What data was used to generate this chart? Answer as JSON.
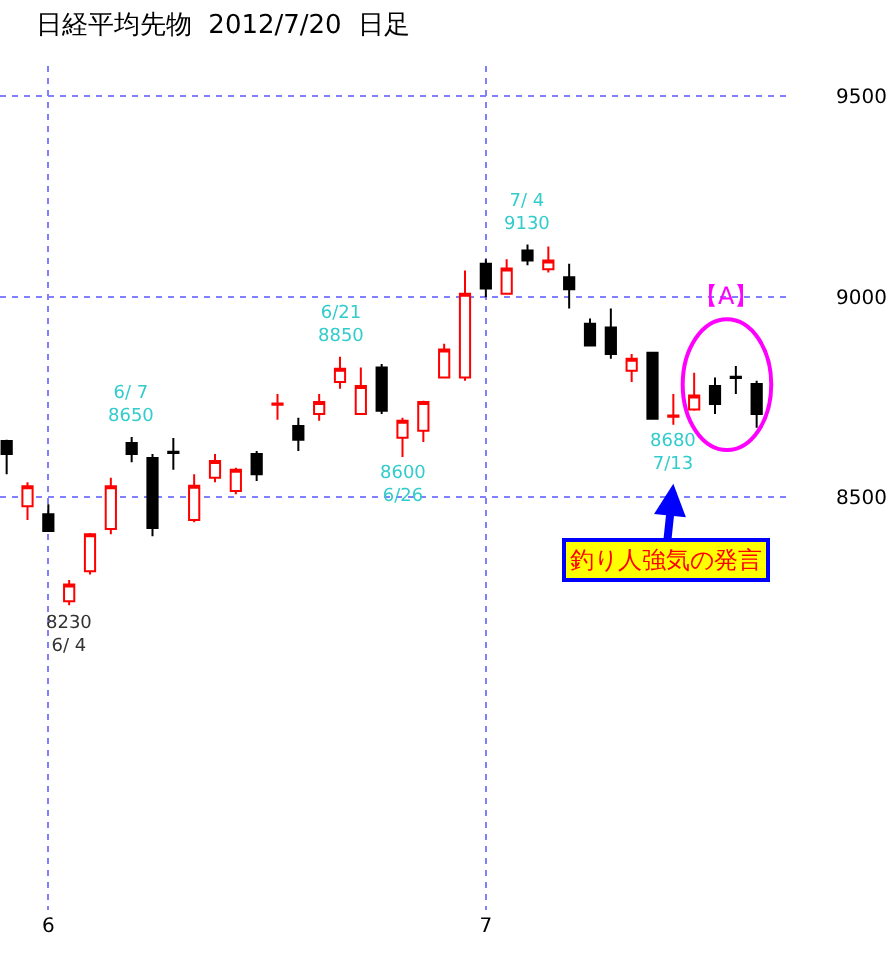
{
  "chart_data": {
    "type": "candlestick",
    "title": "日経平均先物  2012/7/20  日足",
    "categories": [
      null,
      null,
      "6",
      null,
      null,
      null,
      null,
      null,
      null,
      null,
      null,
      null,
      null,
      null,
      null,
      null,
      null,
      null,
      null,
      null,
      null,
      null,
      null,
      "7",
      null,
      null,
      null,
      null,
      null,
      null,
      null,
      null,
      null,
      null,
      null,
      null,
      null
    ],
    "ohlc": [
      [
        8640,
        8643,
        8557,
        8607
      ],
      [
        8477,
        8537,
        8443,
        8527
      ],
      [
        8457,
        8482,
        8415,
        8415
      ],
      [
        8240,
        8293,
        8230,
        8282
      ],
      [
        8315,
        8410,
        8307,
        8407
      ],
      [
        8420,
        8548,
        8407,
        8527
      ],
      [
        8635,
        8650,
        8587,
        8607
      ],
      [
        8597,
        8607,
        8402,
        8423
      ],
      [
        8613,
        8647,
        8568,
        8610
      ],
      [
        8443,
        8557,
        8437,
        8528
      ],
      [
        8548,
        8607,
        8537,
        8590
      ],
      [
        8515,
        8573,
        8507,
        8568
      ],
      [
        8607,
        8615,
        8540,
        8557
      ],
      [
        8730,
        8757,
        8693,
        8733
      ],
      [
        8677,
        8698,
        8615,
        8643
      ],
      [
        8707,
        8757,
        8690,
        8737
      ],
      [
        8787,
        8850,
        8770,
        8820
      ],
      [
        8707,
        8823,
        8707,
        8777
      ],
      [
        8823,
        8832,
        8707,
        8715
      ],
      [
        8648,
        8698,
        8600,
        8690
      ],
      [
        8665,
        8740,
        8637,
        8737
      ],
      [
        8798,
        8882,
        8798,
        8868
      ],
      [
        8798,
        9065,
        8790,
        9007
      ],
      [
        9082,
        9093,
        8998,
        9020
      ],
      [
        9007,
        9093,
        9007,
        9070
      ],
      [
        9115,
        9130,
        9078,
        9090
      ],
      [
        9068,
        9125,
        9060,
        9090
      ],
      [
        9048,
        9082,
        8970,
        9018
      ],
      [
        8932,
        8945,
        8878,
        8878
      ],
      [
        8923,
        8970,
        8845,
        8857
      ],
      [
        8815,
        8857,
        8787,
        8845
      ],
      [
        8860,
        8860,
        8695,
        8695
      ],
      [
        8700,
        8757,
        8680,
        8703
      ],
      [
        8718,
        8810,
        8715,
        8753
      ],
      [
        8777,
        8798,
        8707,
        8732
      ],
      [
        8800,
        8827,
        8757,
        8797
      ],
      [
        8782,
        8790,
        8673,
        8707
      ]
    ],
    "ylim": [
      7470,
      9575
    ],
    "yticks": [
      8500,
      9000,
      9500
    ],
    "grid": true,
    "annotations": [
      "8230\n6/ 4",
      "6/ 7\n8650",
      "6/21\n8850",
      "8600\n6/26",
      "7/ 4\n9130",
      "8680\n7/13",
      "【A】",
      "釣り人強気の発言"
    ]
  }
}
